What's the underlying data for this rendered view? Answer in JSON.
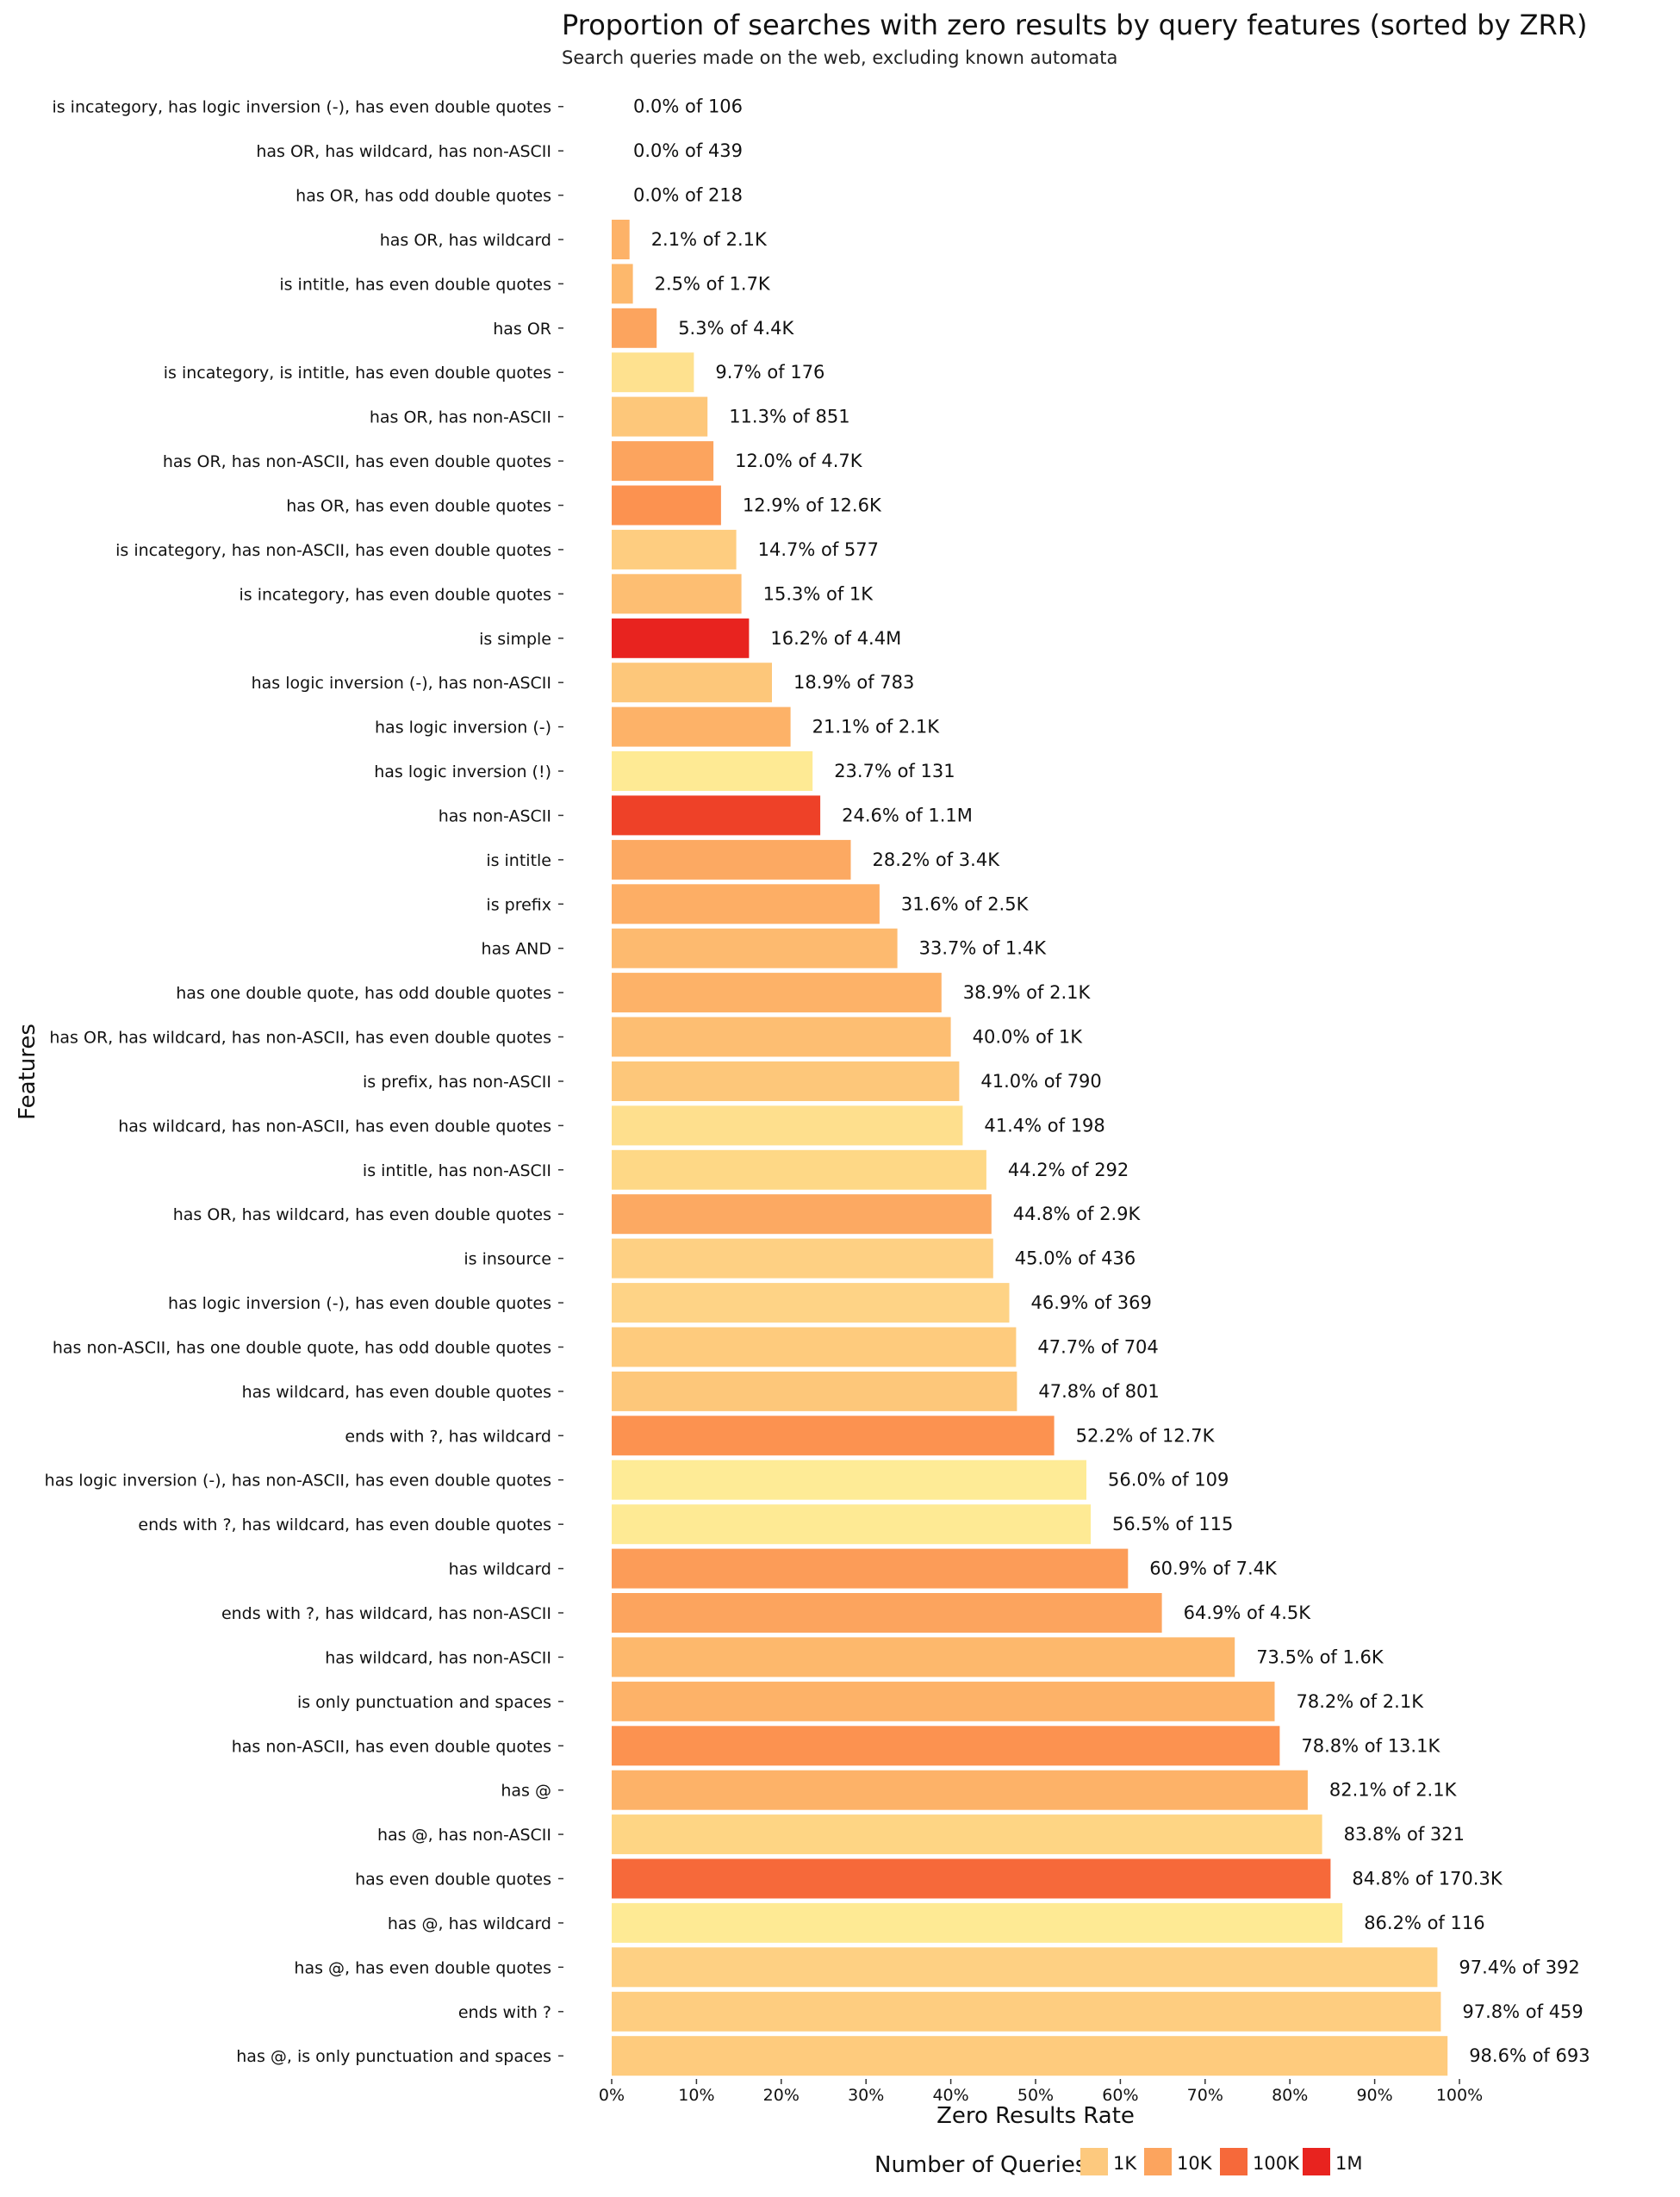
{
  "chart_data": {
    "type": "bar",
    "orientation": "horizontal",
    "title": "Proportion of searches with zero results by query features (sorted by ZRR)",
    "subtitle": "Search queries made on the web, excluding known automata",
    "xlabel": "Zero Results Rate",
    "ylabel": "Features",
    "xlim": [
      0,
      100
    ],
    "x_ticks": [
      "0%",
      "10%",
      "20%",
      "30%",
      "40%",
      "50%",
      "60%",
      "70%",
      "80%",
      "90%",
      "100%"
    ],
    "grid": false,
    "legend": {
      "title": "Number of Queries",
      "position": "bottom",
      "items": [
        {
          "label": "1K",
          "color": "#fdc97e"
        },
        {
          "label": "10K",
          "color": "#fca45e"
        },
        {
          "label": "100K",
          "color": "#f6693a"
        },
        {
          "label": "1M",
          "color": "#e8231f"
        }
      ]
    },
    "bars": [
      {
        "feature": "is incategory, has logic inversion (-), has even double quotes",
        "zrr": 0.0,
        "label": "0.0% of 106",
        "color": "#feeb96"
      },
      {
        "feature": "has OR, has wildcard, has non-ASCII",
        "zrr": 0.0,
        "label": "0.0% of 439",
        "color": "#fed083"
      },
      {
        "feature": "has OR, has odd double quotes",
        "zrr": 0.0,
        "label": "0.0% of 218",
        "color": "#fed98a"
      },
      {
        "feature": "has OR, has wildcard",
        "zrr": 2.1,
        "label": "2.1% of 2.1K",
        "color": "#fdb268"
      },
      {
        "feature": "is intitle, has even double quotes",
        "zrr": 2.5,
        "label": "2.5% of 1.7K",
        "color": "#fdb86c"
      },
      {
        "feature": "has OR",
        "zrr": 5.3,
        "label": "5.3% of 4.4K",
        "color": "#fca45e"
      },
      {
        "feature": "is incategory, is intitle, has even double quotes",
        "zrr": 9.7,
        "label": "9.7% of 176",
        "color": "#fee18f"
      },
      {
        "feature": "has OR, has non-ASCII",
        "zrr": 11.3,
        "label": "11.3% of 851",
        "color": "#fdc77a"
      },
      {
        "feature": "has OR, has non-ASCII, has even double quotes",
        "zrr": 12.0,
        "label": "12.0% of 4.7K",
        "color": "#fca45e"
      },
      {
        "feature": "has OR, has even double quotes",
        "zrr": 12.9,
        "label": "12.9% of 12.6K",
        "color": "#fc9250"
      },
      {
        "feature": "is incategory, has non-ASCII, has even double quotes",
        "zrr": 14.7,
        "label": "14.7% of 577",
        "color": "#fecd80"
      },
      {
        "feature": "is incategory, has even double quotes",
        "zrr": 15.3,
        "label": "15.3% of 1K",
        "color": "#fdbe72"
      },
      {
        "feature": "is simple",
        "zrr": 16.2,
        "label": "16.2% of 4.4M",
        "color": "#e8231f"
      },
      {
        "feature": "has logic inversion (-), has non-ASCII",
        "zrr": 18.9,
        "label": "18.9% of 783",
        "color": "#fdc77a"
      },
      {
        "feature": "has logic inversion (-)",
        "zrr": 21.1,
        "label": "21.1% of 2.1K",
        "color": "#fdb268"
      },
      {
        "feature": "has logic inversion (!)",
        "zrr": 23.7,
        "label": "23.7% of 131",
        "color": "#feea94"
      },
      {
        "feature": "has non-ASCII",
        "zrr": 24.6,
        "label": "24.6% of 1.1M",
        "color": "#ee4128"
      },
      {
        "feature": "is intitle",
        "zrr": 28.2,
        "label": "28.2% of 3.4K",
        "color": "#fca962"
      },
      {
        "feature": "is prefix",
        "zrr": 31.6,
        "label": "31.6% of 2.5K",
        "color": "#fdae65"
      },
      {
        "feature": "has AND",
        "zrr": 33.7,
        "label": "33.7% of 1.4K",
        "color": "#fdba6f"
      },
      {
        "feature": "has one double quote, has odd double quotes",
        "zrr": 38.9,
        "label": "38.9% of 2.1K",
        "color": "#fdb268"
      },
      {
        "feature": "has OR, has wildcard, has non-ASCII, has even double quotes",
        "zrr": 40.0,
        "label": "40.0% of 1K",
        "color": "#fdbe72"
      },
      {
        "feature": "is prefix, has non-ASCII",
        "zrr": 41.0,
        "label": "41.0% of 790",
        "color": "#fdc77a"
      },
      {
        "feature": "has wildcard, has non-ASCII, has even double quotes",
        "zrr": 41.4,
        "label": "41.4% of 198",
        "color": "#fedf8d"
      },
      {
        "feature": "is intitle, has non-ASCII",
        "zrr": 44.2,
        "label": "44.2% of 292",
        "color": "#fed886"
      },
      {
        "feature": "has OR, has wildcard, has even double quotes",
        "zrr": 44.8,
        "label": "44.8% of 2.9K",
        "color": "#fca962"
      },
      {
        "feature": "is insource",
        "zrr": 45.0,
        "label": "45.0% of 436",
        "color": "#fed083"
      },
      {
        "feature": "has logic inversion (-), has even double quotes",
        "zrr": 46.9,
        "label": "46.9% of 369",
        "color": "#fed386"
      },
      {
        "feature": "has non-ASCII, has one double quote, has odd double quotes",
        "zrr": 47.7,
        "label": "47.7% of 704",
        "color": "#fecb7d"
      },
      {
        "feature": "has wildcard, has even double quotes",
        "zrr": 47.8,
        "label": "47.8% of 801",
        "color": "#fdc77a"
      },
      {
        "feature": "ends with ?, has wildcard",
        "zrr": 52.2,
        "label": "52.2% of 12.7K",
        "color": "#fc9250"
      },
      {
        "feature": "has logic inversion (-), has non-ASCII, has even double quotes",
        "zrr": 56.0,
        "label": "56.0% of 109",
        "color": "#feeb96"
      },
      {
        "feature": "ends with ?, has wildcard, has even double quotes",
        "zrr": 56.5,
        "label": "56.5% of 115",
        "color": "#feea94"
      },
      {
        "feature": "has wildcard",
        "zrr": 60.9,
        "label": "60.9% of 7.4K",
        "color": "#fc9c58"
      },
      {
        "feature": "ends with ?, has wildcard, has non-ASCII",
        "zrr": 64.9,
        "label": "64.9% of 4.5K",
        "color": "#fca45e"
      },
      {
        "feature": "has wildcard, has non-ASCII",
        "zrr": 73.5,
        "label": "73.5% of 1.6K",
        "color": "#fdb86c"
      },
      {
        "feature": "is only punctuation and spaces",
        "zrr": 78.2,
        "label": "78.2% of 2.1K",
        "color": "#fdb268"
      },
      {
        "feature": "has non-ASCII, has even double quotes",
        "zrr": 78.8,
        "label": "78.8% of 13.1K",
        "color": "#fc9250"
      },
      {
        "feature": "has @",
        "zrr": 82.1,
        "label": "82.1% of 2.1K",
        "color": "#fdb268"
      },
      {
        "feature": "has @, has non-ASCII",
        "zrr": 83.8,
        "label": "83.8% of 321",
        "color": "#fed584"
      },
      {
        "feature": "has even double quotes",
        "zrr": 84.8,
        "label": "84.8% of 170.3K",
        "color": "#f6693a"
      },
      {
        "feature": "has @, has wildcard",
        "zrr": 86.2,
        "label": "86.2% of 116",
        "color": "#feea94"
      },
      {
        "feature": "has @, has even double quotes",
        "zrr": 97.4,
        "label": "97.4% of 392",
        "color": "#fed083"
      },
      {
        "feature": "ends with ?",
        "zrr": 97.8,
        "label": "97.8% of 459",
        "color": "#fecd80"
      },
      {
        "feature": "has @, is only punctuation and spaces",
        "zrr": 98.6,
        "label": "98.6% of 693",
        "color": "#fecb7d"
      }
    ]
  }
}
